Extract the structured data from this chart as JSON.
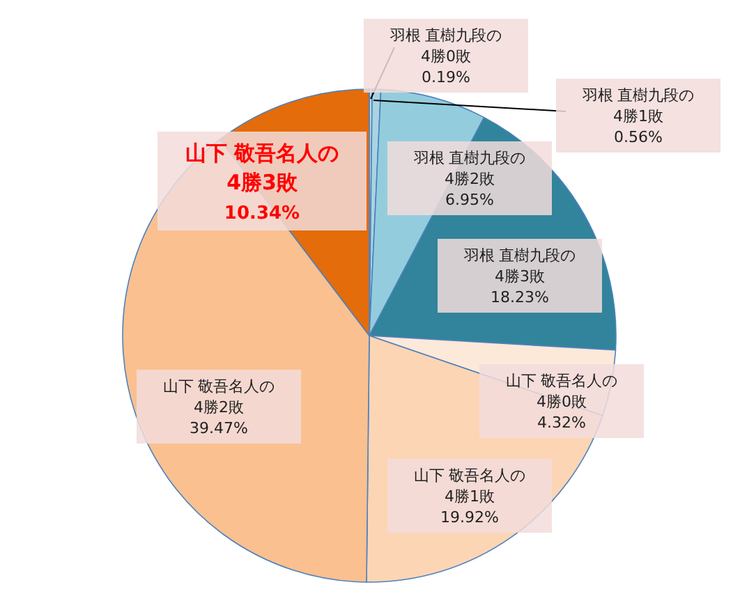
{
  "chart_data": {
    "type": "pie",
    "categories": [
      "羽根 直樹九段の\n4勝0敗",
      "羽根 直樹九段の\n4勝1敗",
      "羽根 直樹九段の\n4勝2敗",
      "羽根 直樹九段の\n4勝3敗",
      "山下 敬吾名人の\n4勝0敗",
      "山下 敬吾名人の\n4勝1敗",
      "山下 敬吾名人の\n4勝2敗",
      "山下 敬吾名人の\n4勝3敗"
    ],
    "values": [
      0.19,
      0.56,
      6.95,
      18.23,
      4.32,
      19.92,
      39.47,
      10.34
    ],
    "value_labels": [
      "0.19%",
      "0.56%",
      "6.95%",
      "18.23%",
      "4.32%",
      "19.92%",
      "39.47%",
      "10.34%"
    ],
    "colors": [
      "#b7dde8",
      "#a8d4e2",
      "#93cddd",
      "#31849b",
      "#fde9d9",
      "#fcd5b5",
      "#fac090",
      "#e46c0a"
    ]
  }
}
